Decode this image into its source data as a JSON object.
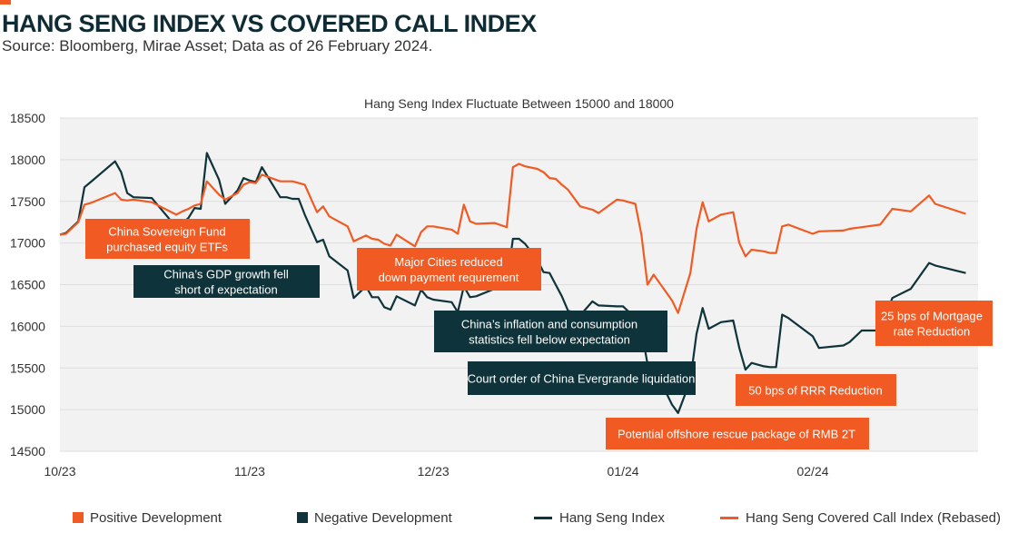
{
  "header": {
    "title": "HANG SENG INDEX VS COVERED CALL INDEX",
    "subtitle": "Source: Bloomberg, Mirae Asset; Data as of 26 February 2024."
  },
  "colors": {
    "positive": "#f15a22",
    "negative": "#0f333a",
    "hsi_line": "#0f333a",
    "covered_line": "#f15a22",
    "plot_bg": "#f2f2f2",
    "grid": "#dddddd"
  },
  "legend": [
    {
      "label": "Positive Development",
      "kind": "square",
      "color": "#f15a22"
    },
    {
      "label": "Negative Development",
      "kind": "square",
      "color": "#0f333a"
    },
    {
      "label": "Hang Seng Index",
      "kind": "line",
      "color": "#0f333a"
    },
    {
      "label": "Hang Seng Covered Call Index (Rebased)",
      "kind": "line",
      "color": "#f15a22"
    }
  ],
  "chart_data": {
    "type": "line",
    "title": "Hang Seng Index Fluctuate Between 15000 and 18000",
    "xlabel": "",
    "ylabel": "",
    "x_domain": [
      "2023-10-01",
      "2024-02-28"
    ],
    "ylim": [
      14500,
      18500
    ],
    "yticks": [
      14500,
      15000,
      15500,
      16000,
      16500,
      17000,
      17500,
      18000,
      18500
    ],
    "xticks": [
      {
        "label": "10/23",
        "date": "2023-10-01"
      },
      {
        "label": "11/23",
        "date": "2023-11-01"
      },
      {
        "label": "12/23",
        "date": "2023-12-01"
      },
      {
        "label": "01/24",
        "date": "2024-01-01"
      },
      {
        "label": "02/24",
        "date": "2024-02-01"
      }
    ],
    "grid": true,
    "legend_position": "bottom",
    "series": [
      {
        "name": "Hang Seng Index",
        "color": "#0f333a",
        "x": [
          "2023-10-01",
          "2023-10-02",
          "2023-10-04",
          "2023-10-05",
          "2023-10-06",
          "2023-10-10",
          "2023-10-11",
          "2023-10-12",
          "2023-10-13",
          "2023-10-16",
          "2023-10-20",
          "2023-10-21",
          "2023-10-22",
          "2023-10-23",
          "2023-10-24",
          "2023-10-25",
          "2023-10-27",
          "2023-10-28",
          "2023-10-30",
          "2023-10-31",
          "2023-11-01",
          "2023-11-02",
          "2023-11-03",
          "2023-11-06",
          "2023-11-07",
          "2023-11-08",
          "2023-11-09",
          "2023-11-10",
          "2023-11-12",
          "2023-11-13",
          "2023-11-14",
          "2023-11-17",
          "2023-11-18",
          "2023-11-20",
          "2023-11-21",
          "2023-11-22",
          "2023-11-23",
          "2023-11-24",
          "2023-11-25",
          "2023-11-28",
          "2023-11-29",
          "2023-11-30",
          "2023-12-01",
          "2023-12-04",
          "2023-12-05",
          "2023-12-06",
          "2023-12-07",
          "2023-12-08",
          "2023-12-11",
          "2023-12-13",
          "2023-12-14",
          "2023-12-15",
          "2023-12-16",
          "2023-12-18",
          "2023-12-19",
          "2023-12-20",
          "2023-12-21",
          "2023-12-22",
          "2023-12-23",
          "2023-12-25",
          "2023-12-27",
          "2023-12-28",
          "2023-12-31",
          "2024-01-01",
          "2024-01-02",
          "2024-01-03",
          "2024-01-04",
          "2024-01-05",
          "2024-01-06",
          "2024-01-09",
          "2024-01-10",
          "2024-01-12",
          "2024-01-13",
          "2024-01-14",
          "2024-01-15",
          "2024-01-17",
          "2024-01-19",
          "2024-01-20",
          "2024-01-21",
          "2024-01-22",
          "2024-01-24",
          "2024-01-25",
          "2024-01-26",
          "2024-01-27",
          "2024-01-28",
          "2024-02-01",
          "2024-02-02",
          "2024-02-06",
          "2024-02-07",
          "2024-02-09",
          "2024-02-12",
          "2024-02-14",
          "2024-02-17",
          "2024-02-20",
          "2024-02-21",
          "2024-02-26"
        ],
        "y": [
          17100,
          17120,
          17260,
          17670,
          17730,
          17980,
          17850,
          17600,
          17550,
          17540,
          17190,
          17240,
          17300,
          17420,
          17410,
          18080,
          17760,
          17470,
          17630,
          17780,
          17750,
          17730,
          17910,
          17550,
          17550,
          17530,
          17530,
          17340,
          17010,
          17040,
          16840,
          16670,
          16340,
          16480,
          16350,
          16350,
          16230,
          16200,
          16360,
          16250,
          16440,
          16350,
          16320,
          16290,
          16170,
          16480,
          16350,
          16360,
          16450,
          16500,
          17050,
          17050,
          16990,
          16800,
          16650,
          16640,
          16500,
          16360,
          16190,
          16130,
          16300,
          16250,
          16240,
          16240,
          16170,
          16110,
          15960,
          15550,
          15510,
          15060,
          14960,
          15350,
          15910,
          16220,
          15970,
          16050,
          16070,
          15740,
          15480,
          15560,
          15520,
          15510,
          15510,
          16140,
          16100,
          15880,
          15740,
          15770,
          15810,
          15950,
          15950,
          16340,
          16450,
          16760,
          16730,
          16640
        ]
      },
      {
        "name": "Hang Seng Covered Call Index (Rebased)",
        "color": "#f15a22",
        "x": [
          "2023-10-01",
          "2023-10-02",
          "2023-10-04",
          "2023-10-05",
          "2023-10-06",
          "2023-10-10",
          "2023-10-11",
          "2023-10-12",
          "2023-10-13",
          "2023-10-16",
          "2023-10-20",
          "2023-10-21",
          "2023-10-22",
          "2023-10-23",
          "2023-10-24",
          "2023-10-25",
          "2023-10-27",
          "2023-10-28",
          "2023-10-30",
          "2023-10-31",
          "2023-11-01",
          "2023-11-02",
          "2023-11-03",
          "2023-11-06",
          "2023-11-07",
          "2023-11-08",
          "2023-11-09",
          "2023-11-10",
          "2023-11-12",
          "2023-11-13",
          "2023-11-14",
          "2023-11-17",
          "2023-11-18",
          "2023-11-20",
          "2023-11-21",
          "2023-11-22",
          "2023-11-23",
          "2023-11-24",
          "2023-11-25",
          "2023-11-28",
          "2023-11-29",
          "2023-11-30",
          "2023-12-01",
          "2023-12-04",
          "2023-12-05",
          "2023-12-06",
          "2023-12-07",
          "2023-12-08",
          "2023-12-11",
          "2023-12-13",
          "2023-12-14",
          "2023-12-15",
          "2023-12-16",
          "2023-12-18",
          "2023-12-19",
          "2023-12-20",
          "2023-12-21",
          "2023-12-22",
          "2023-12-23",
          "2023-12-25",
          "2023-12-27",
          "2023-12-28",
          "2023-12-31",
          "2024-01-01",
          "2024-01-02",
          "2024-01-03",
          "2024-01-04",
          "2024-01-05",
          "2024-01-06",
          "2024-01-09",
          "2024-01-10",
          "2024-01-12",
          "2024-01-13",
          "2024-01-14",
          "2024-01-15",
          "2024-01-17",
          "2024-01-19",
          "2024-01-20",
          "2024-01-21",
          "2024-01-22",
          "2024-01-24",
          "2024-01-25",
          "2024-01-26",
          "2024-01-27",
          "2024-01-28",
          "2024-02-01",
          "2024-02-02",
          "2024-02-06",
          "2024-02-07",
          "2024-02-09",
          "2024-02-12",
          "2024-02-14",
          "2024-02-17",
          "2024-02-20",
          "2024-02-21",
          "2024-02-26"
        ],
        "y": [
          17100,
          17110,
          17250,
          17460,
          17480,
          17600,
          17520,
          17510,
          17520,
          17490,
          17340,
          17380,
          17410,
          17450,
          17470,
          17740,
          17580,
          17520,
          17600,
          17700,
          17730,
          17720,
          17820,
          17740,
          17740,
          17740,
          17720,
          17700,
          17370,
          17440,
          17320,
          17200,
          17020,
          17090,
          17050,
          17040,
          16990,
          16970,
          17100,
          16960,
          17130,
          17200,
          17200,
          17160,
          17110,
          17460,
          17260,
          17230,
          17240,
          17190,
          17910,
          17950,
          17920,
          17890,
          17850,
          17780,
          17770,
          17700,
          17640,
          17440,
          17400,
          17360,
          17520,
          17510,
          17490,
          17470,
          17100,
          16500,
          16620,
          16310,
          16160,
          16640,
          17170,
          17490,
          17260,
          17340,
          17370,
          17000,
          16840,
          16920,
          16900,
          16880,
          16880,
          17200,
          17220,
          17110,
          17140,
          17150,
          17170,
          17190,
          17220,
          17410,
          17380,
          17570,
          17470,
          17350
        ]
      }
    ],
    "annotations": [
      {
        "text": "China Sovereign Fund\npurchased equity ETFs",
        "type": "positive"
      },
      {
        "text": "China’s GDP growth fell\nshort of expectation",
        "type": "negative"
      },
      {
        "text": "Major Cities reduced\ndown payment requrement",
        "type": "positive"
      },
      {
        "text": "China’s inflation and consumption\nstatistics fell below expectation",
        "type": "negative"
      },
      {
        "text": "Court order of China Evergrande liquidation",
        "type": "negative"
      },
      {
        "text": "50 bps of RRR Reduction",
        "type": "positive"
      },
      {
        "text": "Potential offshore rescue package of RMB 2T",
        "type": "positive"
      },
      {
        "text": "25 bps of Mortgage\nrate Reduction",
        "type": "positive"
      }
    ]
  }
}
